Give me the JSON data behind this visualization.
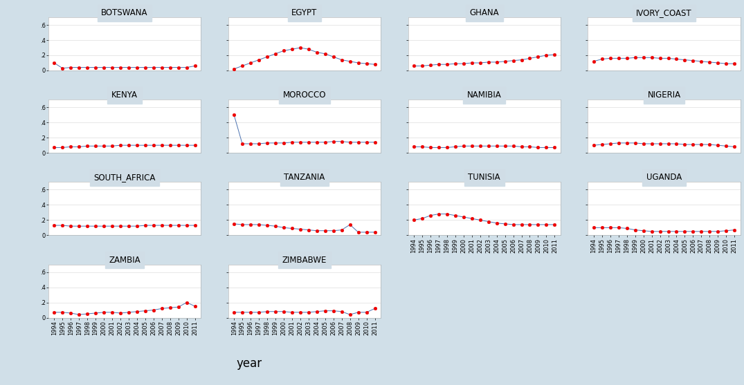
{
  "years": [
    1994,
    1995,
    1996,
    1997,
    1998,
    1999,
    2000,
    2001,
    2002,
    2003,
    2004,
    2005,
    2006,
    2007,
    2008,
    2009,
    2010,
    2011
  ],
  "countries": [
    "BOTSWANA",
    "EGYPT",
    "GHANA",
    "IVORY_COAST",
    "KENYA",
    "MOROCCO",
    "NAMIBIA",
    "NIGERIA",
    "SOUTH_AFRICA",
    "TANZANIA",
    "TUNISIA",
    "UGANDA",
    "ZAMBIA",
    "ZIMBABWE"
  ],
  "layout": [
    [
      "BOTSWANA",
      "EGYPT",
      "GHANA",
      "IVORY_COAST"
    ],
    [
      "KENYA",
      "MOROCCO",
      "NAMIBIA",
      "NIGERIA"
    ],
    [
      "SOUTH_AFRICA",
      "TANZANIA",
      "TUNISIA",
      "UGANDA"
    ],
    [
      "ZAMBIA",
      "ZIMBABWE",
      null,
      null
    ]
  ],
  "data": {
    "BOTSWANA": [
      0.1,
      0.03,
      0.04,
      0.04,
      0.04,
      0.04,
      0.04,
      0.04,
      0.04,
      0.04,
      0.04,
      0.04,
      0.04,
      0.04,
      0.04,
      0.04,
      0.04,
      0.06
    ],
    "EGYPT": [
      0.02,
      0.06,
      0.1,
      0.14,
      0.18,
      0.22,
      0.26,
      0.28,
      0.3,
      0.28,
      0.24,
      0.22,
      0.18,
      0.14,
      0.12,
      0.1,
      0.09,
      0.08
    ],
    "GHANA": [
      0.06,
      0.06,
      0.07,
      0.08,
      0.08,
      0.09,
      0.09,
      0.1,
      0.1,
      0.11,
      0.11,
      0.12,
      0.13,
      0.14,
      0.16,
      0.18,
      0.2,
      0.21
    ],
    "IVORY_COAST": [
      0.12,
      0.15,
      0.16,
      0.16,
      0.16,
      0.17,
      0.17,
      0.17,
      0.16,
      0.16,
      0.15,
      0.14,
      0.13,
      0.12,
      0.11,
      0.1,
      0.09,
      0.09
    ],
    "KENYA": [
      0.07,
      0.07,
      0.08,
      0.08,
      0.09,
      0.09,
      0.09,
      0.09,
      0.1,
      0.1,
      0.1,
      0.1,
      0.1,
      0.1,
      0.1,
      0.1,
      0.1,
      0.1
    ],
    "MOROCCO": [
      0.5,
      0.12,
      0.12,
      0.12,
      0.13,
      0.13,
      0.13,
      0.14,
      0.14,
      0.14,
      0.14,
      0.14,
      0.15,
      0.15,
      0.14,
      0.14,
      0.14,
      0.14
    ],
    "NAMIBIA": [
      0.08,
      0.08,
      0.07,
      0.07,
      0.07,
      0.08,
      0.09,
      0.09,
      0.09,
      0.09,
      0.09,
      0.09,
      0.09,
      0.08,
      0.08,
      0.07,
      0.07,
      0.07
    ],
    "NIGERIA": [
      0.1,
      0.11,
      0.12,
      0.13,
      0.13,
      0.13,
      0.12,
      0.12,
      0.12,
      0.12,
      0.12,
      0.11,
      0.11,
      0.11,
      0.11,
      0.1,
      0.09,
      0.08
    ],
    "SOUTH_AFRICA": [
      0.13,
      0.13,
      0.12,
      0.12,
      0.12,
      0.12,
      0.12,
      0.12,
      0.12,
      0.12,
      0.12,
      0.13,
      0.13,
      0.13,
      0.13,
      0.13,
      0.13,
      0.13
    ],
    "TANZANIA": [
      0.15,
      0.14,
      0.14,
      0.14,
      0.13,
      0.12,
      0.1,
      0.09,
      0.08,
      0.07,
      0.06,
      0.06,
      0.06,
      0.07,
      0.14,
      0.04,
      0.04,
      0.04
    ],
    "TUNISIA": [
      0.2,
      0.22,
      0.26,
      0.28,
      0.28,
      0.26,
      0.24,
      0.22,
      0.2,
      0.18,
      0.16,
      0.15,
      0.14,
      0.14,
      0.14,
      0.14,
      0.14,
      0.14
    ],
    "UGANDA": [
      0.1,
      0.1,
      0.1,
      0.1,
      0.09,
      0.07,
      0.06,
      0.05,
      0.05,
      0.05,
      0.05,
      0.05,
      0.05,
      0.05,
      0.05,
      0.05,
      0.06,
      0.07
    ],
    "ZAMBIA": [
      0.07,
      0.07,
      0.06,
      0.04,
      0.05,
      0.06,
      0.07,
      0.07,
      0.06,
      0.07,
      0.08,
      0.09,
      0.1,
      0.12,
      0.13,
      0.14,
      0.2,
      0.15
    ],
    "ZIMBABWE": [
      0.07,
      0.07,
      0.07,
      0.07,
      0.08,
      0.08,
      0.08,
      0.07,
      0.07,
      0.07,
      0.08,
      0.09,
      0.09,
      0.08,
      0.04,
      0.07,
      0.07,
      0.12
    ]
  },
  "ylim": [
    0,
    0.7
  ],
  "yticks": [
    0,
    0.2,
    0.4,
    0.6
  ],
  "ytick_labels": [
    "0",
    ".2",
    ".4",
    ".6"
  ],
  "line_color": "#4C72B0",
  "marker_color": "#EE0000",
  "background_outer": "#D0DFE8",
  "background_inner": "#FFFFFF",
  "panel_title_bg": "#D0DDE6",
  "xlabel": "year",
  "xlabel_fontsize": 12,
  "title_fontsize": 8.5,
  "tick_fontsize": 6,
  "marker_size": 3.5,
  "line_width": 0.7
}
